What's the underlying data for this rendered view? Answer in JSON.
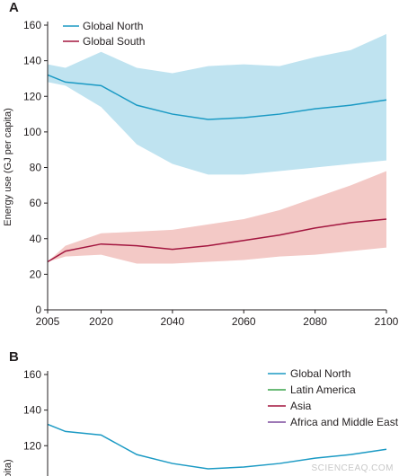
{
  "chart_data": [
    {
      "panel": "A",
      "type": "line",
      "xlabel": "",
      "ylabel": "Energy use (GJ per capita)",
      "xlim": [
        2005,
        2100
      ],
      "ylim": [
        0,
        160
      ],
      "x_ticks": [
        2005,
        2020,
        2040,
        2060,
        2080,
        2100
      ],
      "y_ticks": [
        0,
        20,
        40,
        60,
        80,
        100,
        120,
        140,
        160
      ],
      "grid": false,
      "legend": "top-left",
      "series": [
        {
          "name": "Global North",
          "color": "#1b9ac4",
          "band_color": "#bfe3f0",
          "x": [
            2005,
            2010,
            2020,
            2030,
            2040,
            2050,
            2060,
            2070,
            2080,
            2090,
            2100
          ],
          "values": [
            132,
            128,
            126,
            115,
            110,
            107,
            108,
            110,
            113,
            115,
            118
          ],
          "lower": [
            128,
            126,
            114,
            93,
            82,
            76,
            76,
            78,
            80,
            82,
            84
          ],
          "upper": [
            138,
            136,
            145,
            136,
            133,
            137,
            138,
            137,
            142,
            146,
            155
          ]
        },
        {
          "name": "Global South",
          "color": "#a3163f",
          "band_color": "#f3c9c6",
          "x": [
            2005,
            2010,
            2020,
            2030,
            2040,
            2050,
            2060,
            2070,
            2080,
            2090,
            2100
          ],
          "values": [
            27,
            33,
            37,
            36,
            34,
            36,
            39,
            42,
            46,
            49,
            51
          ],
          "lower": [
            27,
            30,
            31,
            26,
            26,
            27,
            28,
            30,
            31,
            33,
            35
          ],
          "upper": [
            27,
            36,
            43,
            44,
            45,
            48,
            51,
            56,
            63,
            70,
            78
          ]
        }
      ]
    },
    {
      "panel": "B",
      "type": "line",
      "ylabel": "Energy use (GJ per capita)",
      "ylabel_visible": "pita)",
      "xlim": [
        2005,
        2100
      ],
      "y_ticks": [
        120,
        140,
        160
      ],
      "grid": false,
      "legend": "top-right",
      "series": [
        {
          "name": "Global North",
          "color": "#1b9ac4",
          "x": [
            2005,
            2010,
            2020,
            2030,
            2040,
            2050,
            2060,
            2070,
            2080,
            2090,
            2100
          ],
          "values": [
            132,
            128,
            126,
            115,
            110,
            107,
            108,
            110,
            113,
            115,
            118
          ]
        },
        {
          "name": "Latin America",
          "color": "#3aa34a"
        },
        {
          "name": "Asia",
          "color": "#a3163f"
        },
        {
          "name": "Africa and Middle East",
          "color": "#7d4b9e"
        }
      ]
    }
  ],
  "watermark": "SCIENCEAQ.COM"
}
